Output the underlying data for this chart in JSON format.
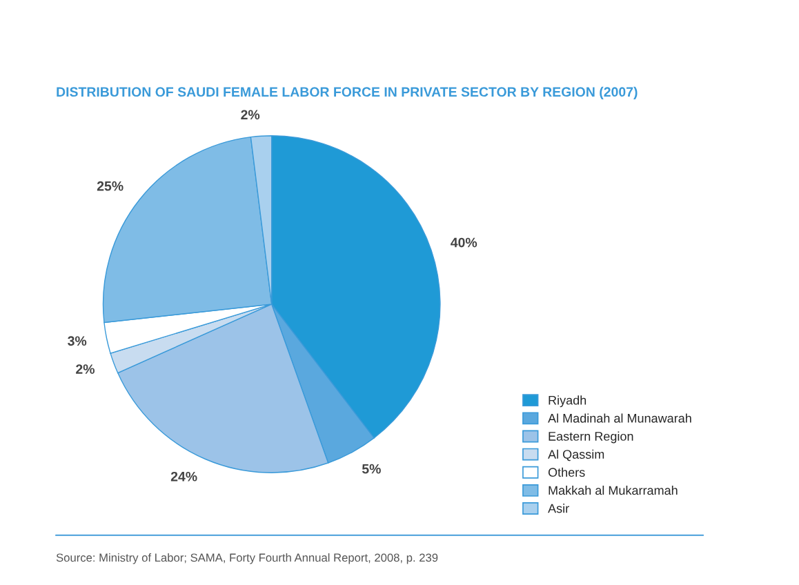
{
  "chart_data": {
    "type": "pie",
    "title": "DISTRIBUTION OF SAUDI FEMALE LABOR FORCE IN PRIVATE SECTOR BY REGION (2007)",
    "categories": [
      "Riyadh",
      "Al Madinah al Munawarah",
      "Eastern Region",
      "Al Qassim",
      "Others",
      "Makkah al Mukarramah",
      "Asir"
    ],
    "values": [
      40,
      5,
      24,
      2,
      3,
      25,
      2
    ],
    "value_labels": [
      "40%",
      "5%",
      "24%",
      "2%",
      "3%",
      "25%",
      "2%"
    ],
    "colors": [
      "#1f9ad6",
      "#5aa8de",
      "#9cc3e8",
      "#c8dcf0",
      "#ffffff",
      "#7fbce6",
      "#a9d0ee"
    ],
    "legend": "bottom right",
    "annotations": [
      "Source: Ministry of Labor; SAMA, Forty Fourth Annual Report, 2008, p. 239"
    ]
  }
}
